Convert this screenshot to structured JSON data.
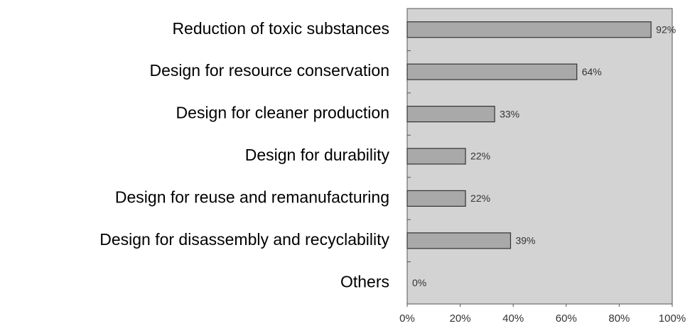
{
  "chart_data": {
    "type": "bar",
    "orientation": "horizontal",
    "categories": [
      "Reduction of toxic substances",
      "Design for resource conservation",
      "Design for cleaner production",
      "Design for durability",
      "Design for reuse and remanufacturing",
      "Design for disassembly and recyclability",
      "Others"
    ],
    "values": [
      92,
      64,
      33,
      22,
      22,
      39,
      0
    ],
    "value_labels": [
      "92%",
      "64%",
      "33%",
      "22%",
      "22%",
      "39%",
      "0%"
    ],
    "color": "#a9a9a9",
    "xlim": [
      0,
      100
    ],
    "xticks": [
      {
        "value": 0,
        "label": "0%"
      },
      {
        "value": 20,
        "label": "20%"
      },
      {
        "value": 40,
        "label": "40%"
      },
      {
        "value": 60,
        "label": "60%"
      },
      {
        "value": 80,
        "label": "80%"
      },
      {
        "value": 100,
        "label": "100%"
      }
    ]
  }
}
